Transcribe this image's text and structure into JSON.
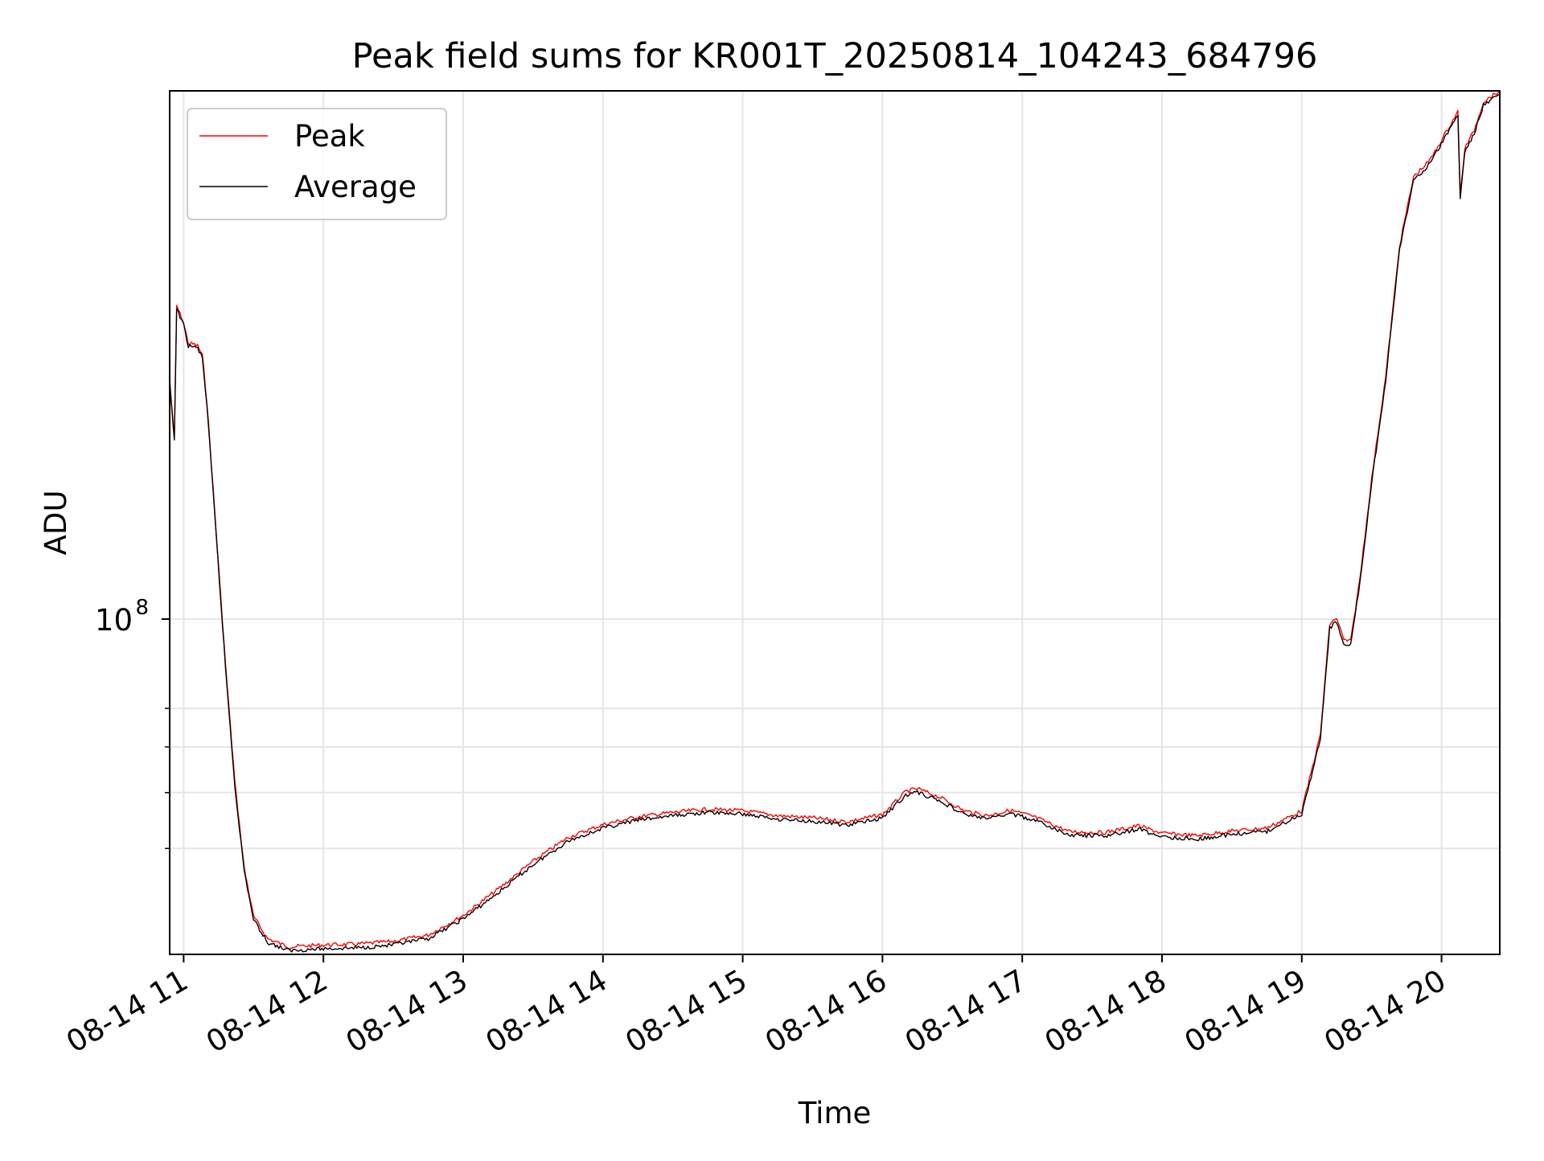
{
  "chart_data": {
    "type": "line",
    "title": "Peak field sums for KR001T_20250814_104243_684796",
    "xlabel": "Time",
    "ylabel": "ADU",
    "x_scale": "time",
    "y_scale": "log",
    "xlim": [
      "2025-08-14 10:54",
      "2025-08-14 20:25"
    ],
    "ylim": [
      26200000,
      825000000
    ],
    "x_ticks": [
      {
        "x": "2025-08-14 11:00",
        "label": "08-14 11"
      },
      {
        "x": "2025-08-14 12:00",
        "label": "08-14 12"
      },
      {
        "x": "2025-08-14 13:00",
        "label": "08-14 13"
      },
      {
        "x": "2025-08-14 14:00",
        "label": "08-14 14"
      },
      {
        "x": "2025-08-14 15:00",
        "label": "08-14 15"
      },
      {
        "x": "2025-08-14 16:00",
        "label": "08-14 16"
      },
      {
        "x": "2025-08-14 17:00",
        "label": "08-14 17"
      },
      {
        "x": "2025-08-14 18:00",
        "label": "08-14 18"
      },
      {
        "x": "2025-08-14 19:00",
        "label": "08-14 19"
      },
      {
        "x": "2025-08-14 20:00",
        "label": "08-14 20"
      }
    ],
    "y_major_ticks": [
      {
        "y": 100000000,
        "base": "10",
        "exp": "8"
      }
    ],
    "y_minor_ticks": [
      40000000,
      50000000,
      60000000,
      70000000
    ],
    "grid": true,
    "legend_position": "upper-left",
    "series": [
      {
        "name": "Peak",
        "color": "#ff0000",
        "points": [
          [
            "2025-08-14 10:54",
            260000000
          ],
          [
            "2025-08-14 10:56",
            205000000
          ],
          [
            "2025-08-14 10:57",
            350000000
          ],
          [
            "2025-08-14 11:00",
            326000000
          ],
          [
            "2025-08-14 11:02",
            301000000
          ],
          [
            "2025-08-14 11:04",
            300000000
          ],
          [
            "2025-08-14 11:06",
            298000000
          ],
          [
            "2025-08-14 11:08",
            287000000
          ],
          [
            "2025-08-14 11:10",
            238000000
          ],
          [
            "2025-08-14 11:14",
            141000000
          ],
          [
            "2025-08-14 11:18",
            83000000
          ],
          [
            "2025-08-14 11:22",
            52000000
          ],
          [
            "2025-08-14 11:26",
            37000000
          ],
          [
            "2025-08-14 11:30",
            30500000
          ],
          [
            "2025-08-14 11:36",
            27900000
          ],
          [
            "2025-08-14 11:45",
            27000000
          ],
          [
            "2025-08-14 12:00",
            27200000
          ],
          [
            "2025-08-14 12:15",
            27300000
          ],
          [
            "2025-08-14 12:30",
            27600000
          ],
          [
            "2025-08-14 12:45",
            28300000
          ],
          [
            "2025-08-14 13:00",
            30600000
          ],
          [
            "2025-08-14 13:15",
            34000000
          ],
          [
            "2025-08-14 13:30",
            38000000
          ],
          [
            "2025-08-14 13:45",
            41800000
          ],
          [
            "2025-08-14 14:00",
            44000000
          ],
          [
            "2025-08-14 14:15",
            45400000
          ],
          [
            "2025-08-14 14:30",
            46200000
          ],
          [
            "2025-08-14 14:45",
            46800000
          ],
          [
            "2025-08-14 15:00",
            46500000
          ],
          [
            "2025-08-14 15:15",
            45600000
          ],
          [
            "2025-08-14 15:30",
            45200000
          ],
          [
            "2025-08-14 15:45",
            44500000
          ],
          [
            "2025-08-14 16:00",
            45800000
          ],
          [
            "2025-08-14 16:10",
            50200000
          ],
          [
            "2025-08-14 16:15",
            50800000
          ],
          [
            "2025-08-14 16:25",
            49000000
          ],
          [
            "2025-08-14 16:35",
            46500000
          ],
          [
            "2025-08-14 16:45",
            45600000
          ],
          [
            "2025-08-14 16:55",
            46600000
          ],
          [
            "2025-08-14 17:05",
            45400000
          ],
          [
            "2025-08-14 17:20",
            42800000
          ],
          [
            "2025-08-14 17:35",
            42600000
          ],
          [
            "2025-08-14 17:50",
            43800000
          ],
          [
            "2025-08-14 18:00",
            42500000
          ],
          [
            "2025-08-14 18:15",
            42100000
          ],
          [
            "2025-08-14 18:30",
            42900000
          ],
          [
            "2025-08-14 18:45",
            43400000
          ],
          [
            "2025-08-14 19:00",
            46500000
          ],
          [
            "2025-08-14 19:08",
            63000000
          ],
          [
            "2025-08-14 19:12",
            98000000
          ],
          [
            "2025-08-14 19:15",
            100500000
          ],
          [
            "2025-08-14 19:18",
            92000000
          ],
          [
            "2025-08-14 19:21",
            91500000
          ],
          [
            "2025-08-14 19:25",
            118000000
          ],
          [
            "2025-08-14 19:30",
            175000000
          ],
          [
            "2025-08-14 19:36",
            263000000
          ],
          [
            "2025-08-14 19:42",
            445000000
          ],
          [
            "2025-08-14 19:48",
            585000000
          ],
          [
            "2025-08-14 19:55",
            625000000
          ],
          [
            "2025-08-14 20:02",
            700000000
          ],
          [
            "2025-08-14 20:07",
            760000000
          ],
          [
            "2025-08-14 20:08",
            545000000
          ],
          [
            "2025-08-14 20:10",
            655000000
          ],
          [
            "2025-08-14 20:14",
            705000000
          ],
          [
            "2025-08-14 20:18",
            790000000
          ],
          [
            "2025-08-14 20:25",
            825000000
          ]
        ]
      },
      {
        "name": "Average",
        "color": "#000000",
        "points": [
          [
            "2025-08-14 10:54",
            258000000
          ],
          [
            "2025-08-14 10:56",
            203000000
          ],
          [
            "2025-08-14 10:57",
            347000000
          ],
          [
            "2025-08-14 11:00",
            323000000
          ],
          [
            "2025-08-14 11:02",
            298000000
          ],
          [
            "2025-08-14 11:04",
            297000000
          ],
          [
            "2025-08-14 11:06",
            295000000
          ],
          [
            "2025-08-14 11:08",
            284000000
          ],
          [
            "2025-08-14 11:10",
            235000000
          ],
          [
            "2025-08-14 11:14",
            139000000
          ],
          [
            "2025-08-14 11:18",
            82000000
          ],
          [
            "2025-08-14 11:22",
            51300000
          ],
          [
            "2025-08-14 11:26",
            36500000
          ],
          [
            "2025-08-14 11:30",
            30100000
          ],
          [
            "2025-08-14 11:36",
            27500000
          ],
          [
            "2025-08-14 11:45",
            26600000
          ],
          [
            "2025-08-14 12:00",
            26800000
          ],
          [
            "2025-08-14 12:15",
            26900000
          ],
          [
            "2025-08-14 12:30",
            27200000
          ],
          [
            "2025-08-14 12:45",
            27900000
          ],
          [
            "2025-08-14 13:00",
            30200000
          ],
          [
            "2025-08-14 13:15",
            33500000
          ],
          [
            "2025-08-14 13:30",
            37500000
          ],
          [
            "2025-08-14 13:45",
            41200000
          ],
          [
            "2025-08-14 14:00",
            43400000
          ],
          [
            "2025-08-14 14:15",
            44800000
          ],
          [
            "2025-08-14 14:30",
            45600000
          ],
          [
            "2025-08-14 14:45",
            46200000
          ],
          [
            "2025-08-14 15:00",
            45900000
          ],
          [
            "2025-08-14 15:15",
            45000000
          ],
          [
            "2025-08-14 15:30",
            44600000
          ],
          [
            "2025-08-14 15:45",
            43900000
          ],
          [
            "2025-08-14 16:00",
            45200000
          ],
          [
            "2025-08-14 16:10",
            49500000
          ],
          [
            "2025-08-14 16:15",
            50100000
          ],
          [
            "2025-08-14 16:25",
            48300000
          ],
          [
            "2025-08-14 16:35",
            45900000
          ],
          [
            "2025-08-14 16:45",
            45000000
          ],
          [
            "2025-08-14 16:55",
            46000000
          ],
          [
            "2025-08-14 17:05",
            44800000
          ],
          [
            "2025-08-14 17:20",
            42200000
          ],
          [
            "2025-08-14 17:35",
            42000000
          ],
          [
            "2025-08-14 17:50",
            43200000
          ],
          [
            "2025-08-14 18:00",
            41900000
          ],
          [
            "2025-08-14 18:15",
            41500000
          ],
          [
            "2025-08-14 18:30",
            42300000
          ],
          [
            "2025-08-14 18:45",
            42800000
          ],
          [
            "2025-08-14 19:00",
            45900000
          ],
          [
            "2025-08-14 19:08",
            62000000
          ],
          [
            "2025-08-14 19:12",
            96500000
          ],
          [
            "2025-08-14 19:15",
            99000000
          ],
          [
            "2025-08-14 19:18",
            90500000
          ],
          [
            "2025-08-14 19:21",
            90000000
          ],
          [
            "2025-08-14 19:25",
            116000000
          ],
          [
            "2025-08-14 19:30",
            172000000
          ],
          [
            "2025-08-14 19:36",
            259000000
          ],
          [
            "2025-08-14 19:42",
            438000000
          ],
          [
            "2025-08-14 19:48",
            577000000
          ],
          [
            "2025-08-14 19:55",
            616000000
          ],
          [
            "2025-08-14 20:02",
            690000000
          ],
          [
            "2025-08-14 20:07",
            750000000
          ],
          [
            "2025-08-14 20:08",
            537000000
          ],
          [
            "2025-08-14 20:10",
            646000000
          ],
          [
            "2025-08-14 20:14",
            695000000
          ],
          [
            "2025-08-14 20:18",
            780000000
          ],
          [
            "2025-08-14 20:25",
            815000000
          ]
        ]
      }
    ]
  }
}
